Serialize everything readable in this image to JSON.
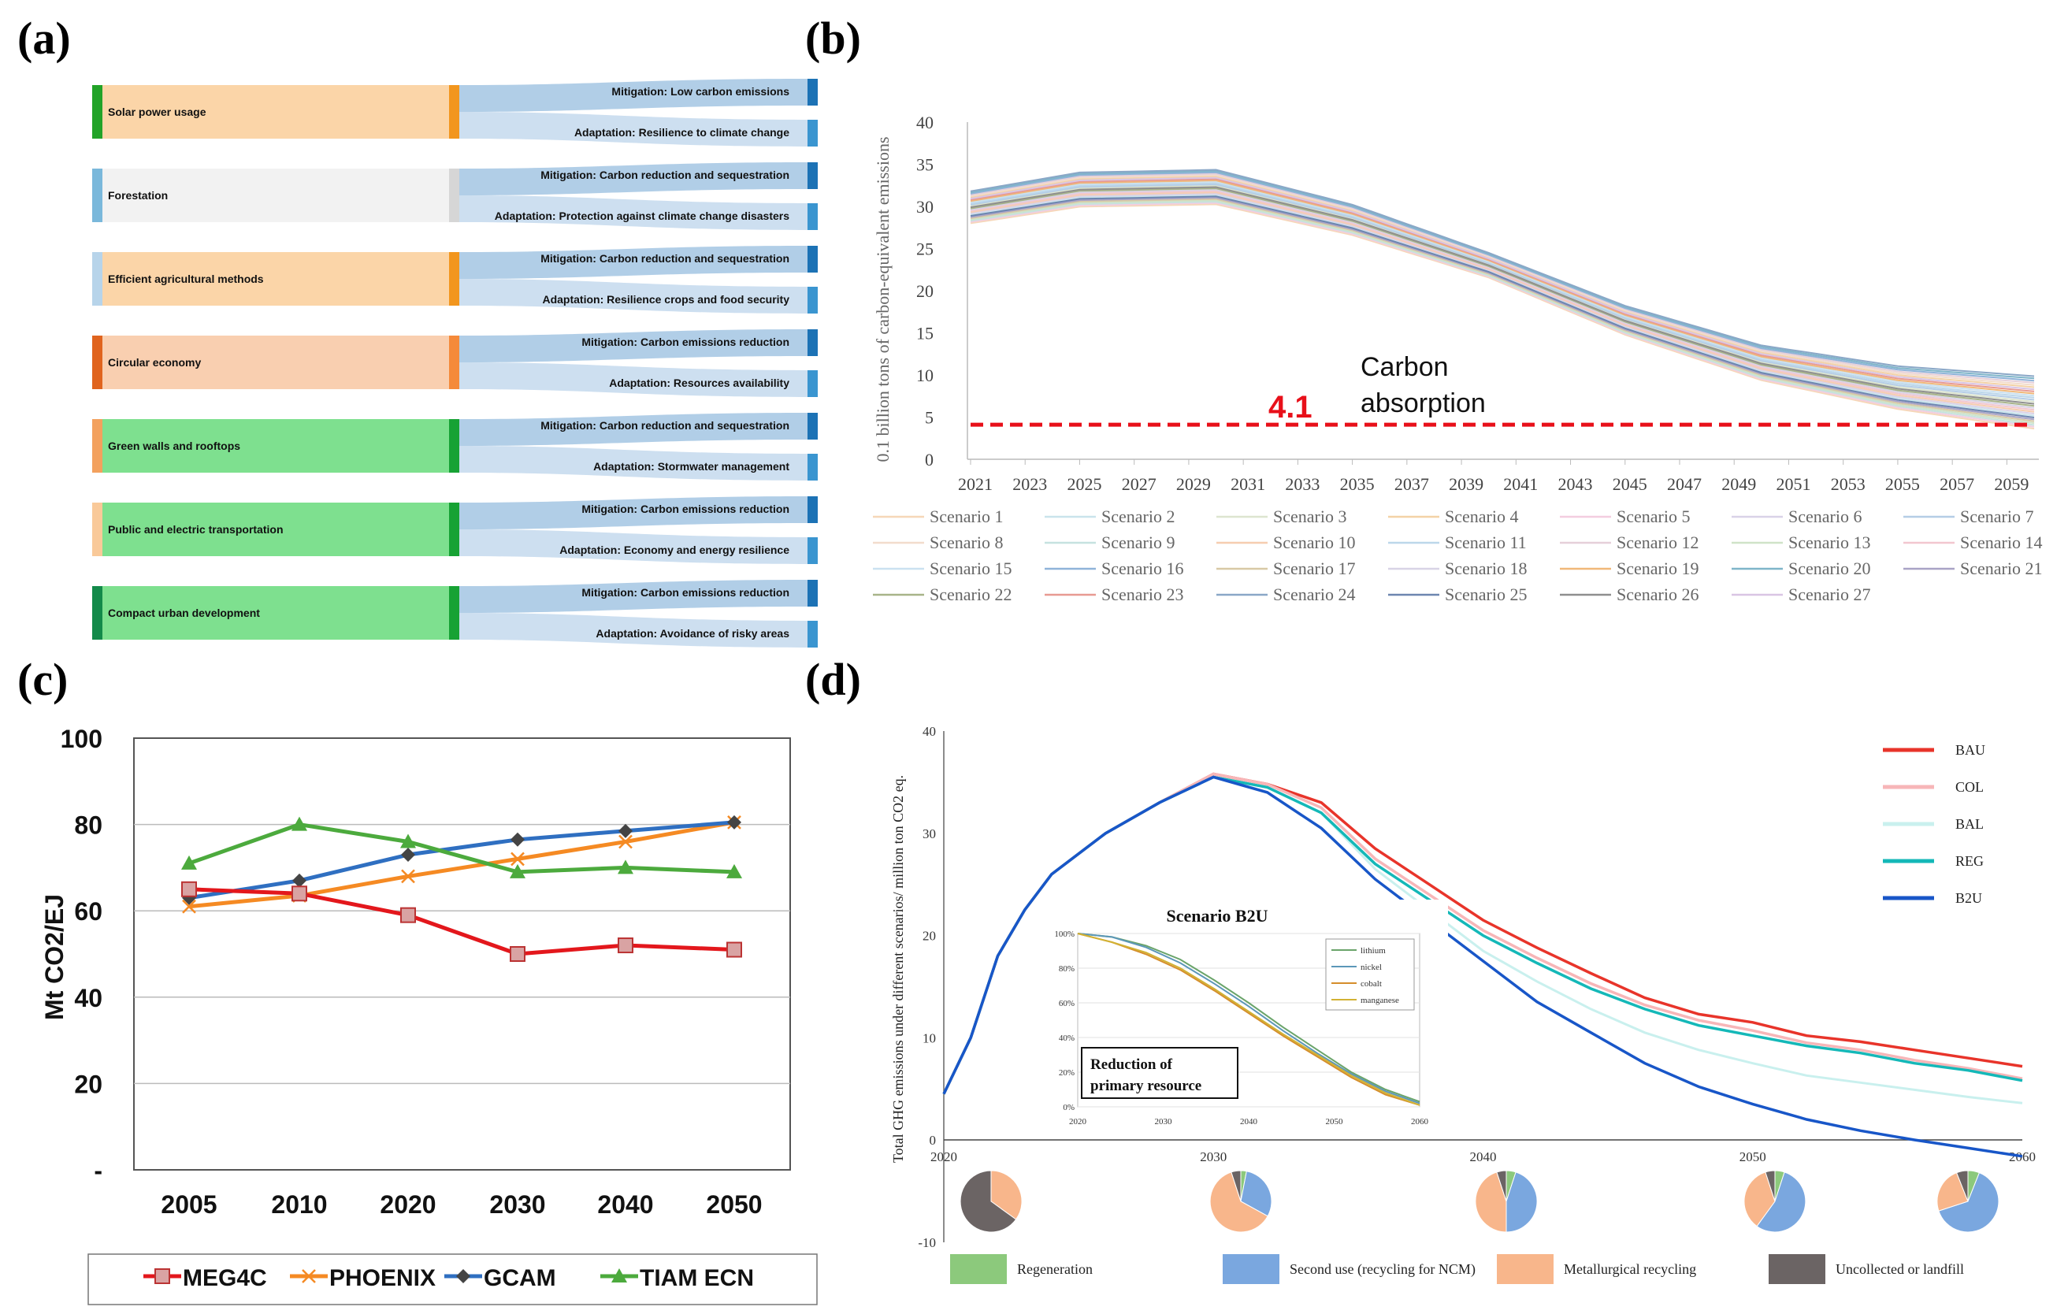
{
  "panel_labels": {
    "a": "(a)",
    "b": "(b)",
    "c": "(c)",
    "d": "(d)"
  },
  "chart_data": [
    {
      "panel": "(a)",
      "type": "sankey",
      "nodes": [
        {
          "source": "Solar power usage",
          "bg": "#fbd5a8",
          "left_color": "#22a328",
          "right_color": "#f2961e",
          "targets": [
            "Mitigation: Low carbon emissions",
            "Adaptation: Resilience to climate change"
          ]
        },
        {
          "source": "Forestation",
          "bg": "#f2f2f2",
          "left_color": "#7ab8db",
          "right_color": "#d6d6d6",
          "targets": [
            "Mitigation: Carbon reduction and sequestration",
            "Adaptation: Protection against climate change disasters"
          ]
        },
        {
          "source": "Efficient agricultural methods",
          "bg": "#fbd5a8",
          "left_color": "#b7d4ea",
          "right_color": "#f2961e",
          "targets": [
            "Mitigation: Carbon reduction and sequestration",
            "Adaptation: Resilience crops and food security"
          ]
        },
        {
          "source": "Circular economy",
          "bg": "#f9cfb0",
          "left_color": "#e0641e",
          "right_color": "#f58a3a",
          "targets": [
            "Mitigation: Carbon emissions reduction",
            "Adaptation: Resources availability"
          ]
        },
        {
          "source": "Green walls and rooftops",
          "bg": "#7ee08f",
          "left_color": "#f3a15e",
          "right_color": "#17a234",
          "targets": [
            "Mitigation: Carbon reduction and sequestration",
            "Adaptation: Stormwater management"
          ]
        },
        {
          "source": "Public and electric transportation",
          "bg": "#7ee08f",
          "left_color": "#f9c999",
          "right_color": "#17a234",
          "targets": [
            "Mitigation: Carbon emissions reduction",
            "Adaptation: Economy and energy resilience"
          ]
        },
        {
          "source": "Compact urban development",
          "bg": "#7ee08f",
          "left_color": "#138a4a",
          "right_color": "#17a234",
          "targets": [
            "Mitigation: Carbon emissions reduction",
            "Adaptation: Avoidance of risky areas"
          ]
        }
      ]
    },
    {
      "panel": "(b)",
      "type": "line",
      "ylabel": "0.1 billion tons of carbon-equivalent emissions",
      "ylim": [
        0,
        40
      ],
      "yticks": [
        0,
        5,
        10,
        15,
        20,
        25,
        30,
        35,
        40
      ],
      "x_range": [
        2021,
        2060
      ],
      "xticks": [
        "2021",
        "2023",
        "2025",
        "2027",
        "2029",
        "2031",
        "2033",
        "2035",
        "2037",
        "2039",
        "2041",
        "2043",
        "2045",
        "2047",
        "2049",
        "2051",
        "2053",
        "2055",
        "2057",
        "2059"
      ],
      "series_template": {
        "x": [
          2021,
          2025,
          2030,
          2035,
          2040,
          2045,
          2050,
          2055,
          2060
        ],
        "shape": [
          1.0,
          1.07,
          1.08,
          0.95,
          0.77,
          0.55,
          0.38,
          0.28,
          0.22
        ]
      },
      "series_start_min": 28.0,
      "series_start_max": 31.8,
      "series_names": [
        "Scenario 1",
        "Scenario 2",
        "Scenario 3",
        "Scenario 4",
        "Scenario 5",
        "Scenario 6",
        "Scenario 7",
        "Scenario 8",
        "Scenario 9",
        "Scenario 10",
        "Scenario 11",
        "Scenario 12",
        "Scenario 13",
        "Scenario 14",
        "Scenario 15",
        "Scenario 16",
        "Scenario 17",
        "Scenario 18",
        "Scenario 19",
        "Scenario 20",
        "Scenario 21",
        "Scenario 22",
        "Scenario 23",
        "Scenario 24",
        "Scenario 25",
        "Scenario 26",
        "Scenario 27"
      ],
      "series_colors": [
        "#f6d7b8",
        "#c9e4ec",
        "#dde5cf",
        "#f3d2a6",
        "#f3cde0",
        "#d9d2e8",
        "#b5cde6",
        "#f2dccc",
        "#c6e2e0",
        "#f6cdb0",
        "#bcd7ea",
        "#e6cfd9",
        "#cfe3c8",
        "#f2c7cf",
        "#cbe1f0",
        "#8fb3d9",
        "#d8c9a6",
        "#d8d3e6",
        "#f0b879",
        "#7fb5c9",
        "#a9a3c6",
        "#a8b489",
        "#e89a92",
        "#8aa7c7",
        "#6d86b0",
        "#8f8f8f",
        "#d9c5e4"
      ],
      "reference_line": {
        "value": 4.1,
        "label": "4.1",
        "color": "#e8101a"
      },
      "annotation": [
        "Carbon",
        "absorption"
      ]
    },
    {
      "panel": "(c)",
      "type": "line",
      "ylabel": "Mt CO2/EJ",
      "categories": [
        "2005",
        "2010",
        "2020",
        "2030",
        "2040",
        "2050"
      ],
      "ylim": [
        0,
        100
      ],
      "ytick_labels": [
        "-",
        "20",
        "40",
        "60",
        "80",
        "100"
      ],
      "series": [
        {
          "name": "MEG4C",
          "color": "#e3171c",
          "marker": "square",
          "values": [
            65,
            64,
            59,
            50,
            52,
            51
          ]
        },
        {
          "name": "PHOENIX",
          "color": "#f58a23",
          "marker": "x",
          "values": [
            61,
            63.5,
            68,
            72,
            76,
            80.5
          ]
        },
        {
          "name": "GCAM",
          "color": "#2f6fc1",
          "marker": "diamond",
          "values": [
            63,
            67,
            73,
            76.5,
            78.5,
            80.5
          ]
        },
        {
          "name": "TIAM ECN",
          "color": "#4caa3d",
          "marker": "triangle",
          "values": [
            71,
            80,
            76,
            69,
            70,
            69
          ]
        }
      ]
    },
    {
      "panel": "(d)",
      "type": "line",
      "ylabel": "Total GHG emissions under different scenarios/ million ton CO2 eq.",
      "ylim": [
        -10,
        40
      ],
      "yticks": [
        "40",
        "30",
        "20",
        "10",
        "0",
        "-10"
      ],
      "xticks": [
        "2020",
        "2030",
        "2040",
        "2050",
        "2060"
      ],
      "x": [
        2020,
        2021,
        2022,
        2023,
        2024,
        2026,
        2028,
        2030,
        2032,
        2034,
        2036,
        2038,
        2040,
        2042,
        2044,
        2046,
        2048,
        2050,
        2052,
        2054,
        2056,
        2058,
        2060
      ],
      "series": [
        {
          "name": "BAU",
          "color": "#e8342a",
          "values": [
            4.5,
            10,
            18,
            22.5,
            26,
            30,
            33,
            35.8,
            34.8,
            33,
            28.5,
            25,
            21.5,
            18.8,
            16.3,
            13.9,
            12.3,
            11.5,
            10.2,
            9.6,
            8.8,
            8,
            7.2
          ]
        },
        {
          "name": "COL",
          "color": "#f7b6b8",
          "values": [
            4.5,
            10,
            18,
            22.5,
            26,
            30,
            33,
            35.8,
            34.8,
            32.5,
            27.5,
            24,
            20.5,
            17.8,
            15.3,
            13.2,
            11.7,
            10.7,
            9.5,
            8.8,
            7.8,
            7,
            6
          ]
        },
        {
          "name": "BAL",
          "color": "#c9f0ee",
          "values": [
            4.5,
            10,
            18,
            22.5,
            26,
            30,
            33,
            35.5,
            34.5,
            32,
            26.5,
            22.5,
            18.5,
            15.5,
            12.8,
            10.5,
            8.8,
            7.5,
            6.3,
            5.6,
            4.9,
            4.2,
            3.6
          ]
        },
        {
          "name": "REG",
          "color": "#14b8b8",
          "values": [
            4.5,
            10,
            18,
            22.5,
            26,
            30,
            33,
            35.5,
            34.5,
            32,
            27,
            23.5,
            20,
            17.3,
            14.8,
            12.8,
            11.2,
            10.2,
            9.2,
            8.5,
            7.5,
            6.8,
            5.8
          ]
        },
        {
          "name": "B2U",
          "color": "#1856c8",
          "values": [
            4.5,
            10,
            18,
            22.5,
            26,
            30,
            33,
            35.5,
            34,
            30.5,
            25.5,
            21.5,
            17.5,
            13.5,
            10.5,
            7.5,
            5.2,
            3.5,
            2,
            0.9,
            0,
            -0.8,
            -1.6
          ]
        }
      ],
      "inset": {
        "title": "Scenario B2U",
        "box_label": [
          "Reduction of",
          "primary resource"
        ],
        "yticks": [
          "100%",
          "80%",
          "60%",
          "40%",
          "20%",
          "0%"
        ],
        "xticks": [
          "2020",
          "2030",
          "2040",
          "2050",
          "2060"
        ],
        "x": [
          2020,
          2024,
          2028,
          2032,
          2036,
          2040,
          2044,
          2048,
          2052,
          2056,
          2060
        ],
        "series": [
          {
            "name": "lithium",
            "color": "#6aa46a",
            "values": [
              100,
              98,
              93,
              85,
              73,
              60,
              46,
              33,
              20,
              10,
              3
            ]
          },
          {
            "name": "nickel",
            "color": "#5c97b8",
            "values": [
              100,
              98,
              92,
              83,
              71,
              58,
              44,
              31,
              19,
              9,
              2
            ]
          },
          {
            "name": "cobalt",
            "color": "#d58d2b",
            "values": [
              100,
              95,
              88,
              79,
              67,
              54,
              41,
              29,
              17,
              7,
              1
            ]
          },
          {
            "name": "manganese",
            "color": "#d2b234",
            "values": [
              100,
              95,
              89,
              80,
              68,
              55,
              42,
              30,
              18,
              8,
              1
            ]
          }
        ]
      },
      "pies": [
        {
          "year": "2020",
          "shares": [
            0,
            0,
            35,
            65
          ]
        },
        {
          "year": "2030",
          "shares": [
            3,
            30,
            62,
            5
          ]
        },
        {
          "year": "2040",
          "shares": [
            5,
            45,
            45,
            5
          ]
        },
        {
          "year": "2050",
          "shares": [
            5,
            55,
            35,
            5
          ]
        },
        {
          "year": "2060",
          "shares": [
            6,
            64,
            24,
            6
          ]
        }
      ],
      "pie_categories": [
        {
          "name": "Regeneration",
          "color": "#8cc97c"
        },
        {
          "name": "Second use (recycling for NCM)",
          "color": "#7aa7df"
        },
        {
          "name": "Metallurgical recycling",
          "color": "#f8b68b"
        },
        {
          "name": "Uncollected or landfill",
          "color": "#6b6464"
        }
      ]
    }
  ]
}
